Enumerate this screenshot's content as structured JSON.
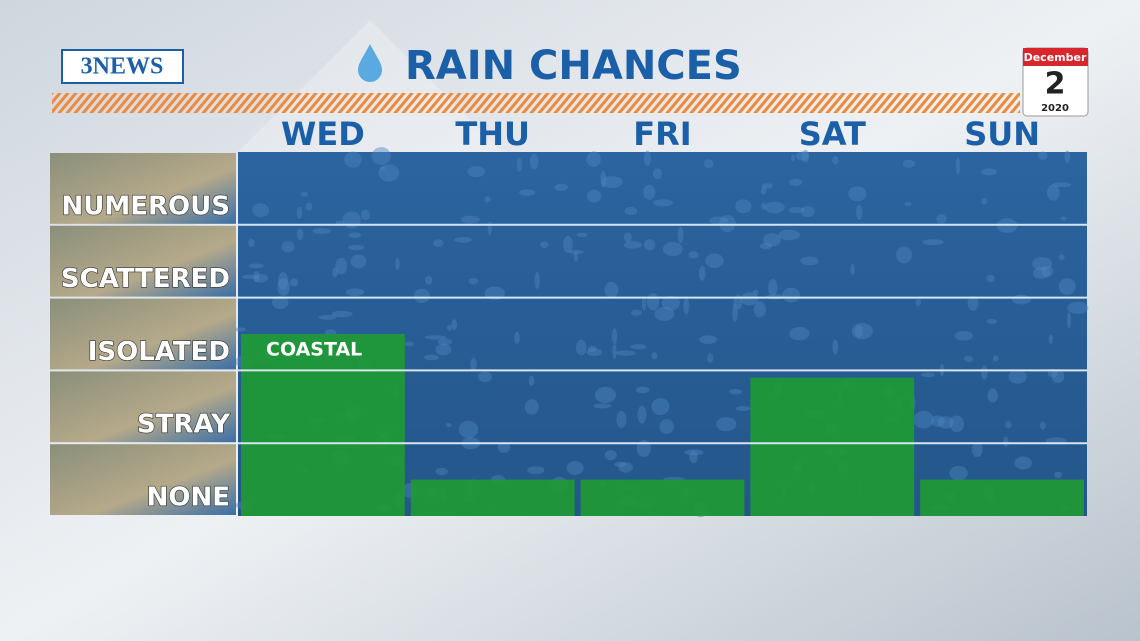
{
  "chart_data": {
    "type": "bar",
    "logo": "3NEWS",
    "title": "RAIN CHANCES",
    "date": {
      "month": "December",
      "day": "2",
      "year": "2020"
    },
    "categories": [
      "WED",
      "THU",
      "FRI",
      "SAT",
      "SUN"
    ],
    "values": [
      2.5,
      0.5,
      0.5,
      1.9,
      0.5
    ],
    "annotation": "COASTAL",
    "color": "#1f9b32",
    "ylim": [
      0,
      5
    ],
    "yticks": [
      {
        "value": 0,
        "label": "NONE"
      },
      {
        "value": 1,
        "label": "STRAY"
      },
      {
        "value": 2,
        "label": "ISOLATED"
      },
      {
        "value": 3,
        "label": "SCATTERED"
      },
      {
        "value": 4,
        "label": "NUMEROUS"
      }
    ],
    "grid": true
  }
}
